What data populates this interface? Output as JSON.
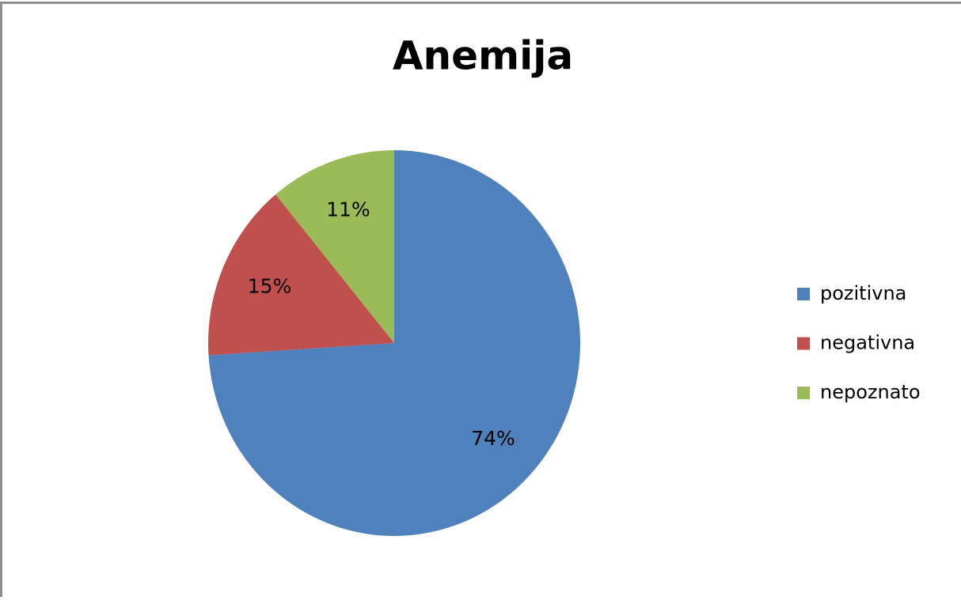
{
  "chart_data": {
    "type": "pie",
    "title": "Anemija",
    "categories": [
      "pozitivna",
      "negativna",
      "nepoznato"
    ],
    "values": [
      74,
      15,
      11
    ],
    "value_labels": [
      "74%",
      "15%",
      "11%"
    ],
    "colors": [
      "#4f81bd",
      "#c0504d",
      "#9bbb59"
    ],
    "legend": "right"
  }
}
